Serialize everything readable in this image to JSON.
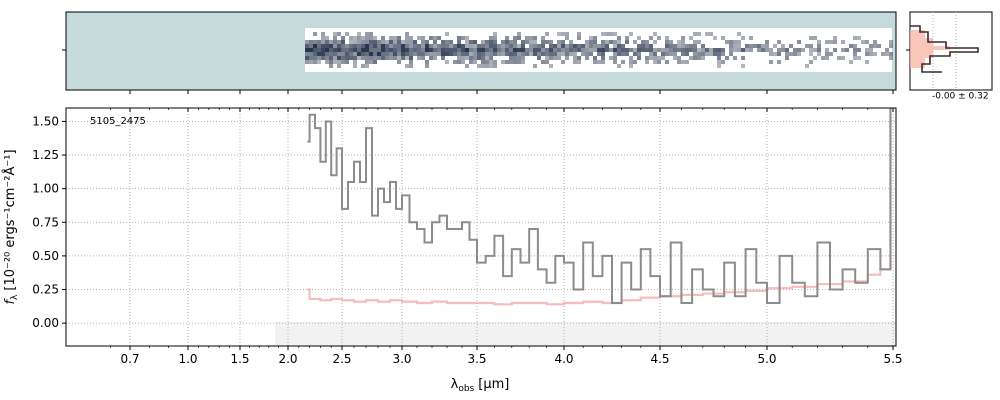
{
  "chart_data": {
    "type": "line",
    "object_label": "5105_2475",
    "xlabel_main": "λ",
    "xlabel_sub": "obs",
    "xlabel_unit": "[μm]",
    "ylabel_base": "f",
    "ylabel_sub": "λ",
    "ylabel_unit": "[10⁻²⁰ ergs⁻¹cm⁻²Å⁻¹]",
    "x_ticks": [
      "0.7",
      "1.0",
      "1.5",
      "2.0",
      "2.5",
      "3.0",
      "3.5",
      "4.0",
      "4.5",
      "5.0",
      "5.5"
    ],
    "y_ticks": [
      "0.00",
      "0.25",
      "0.50",
      "0.75",
      "1.00",
      "1.25",
      "1.50"
    ],
    "ylim": [
      -0.17,
      1.6
    ],
    "grid": true,
    "x_scale": "nonlinear (compressed below 2.0 μm)",
    "series": [
      {
        "color": "#8c8c8c",
        "x": [
          2.18,
          2.2,
          2.25,
          2.3,
          2.35,
          2.4,
          2.45,
          2.5,
          2.55,
          2.6,
          2.65,
          2.7,
          2.75,
          2.8,
          2.85,
          2.9,
          2.95,
          3.0,
          3.05,
          3.1,
          3.15,
          3.2,
          3.25,
          3.3,
          3.35,
          3.4,
          3.45,
          3.5,
          3.55,
          3.6,
          3.65,
          3.7,
          3.75,
          3.8,
          3.85,
          3.9,
          3.95,
          4.0,
          4.05,
          4.1,
          4.15,
          4.2,
          4.25,
          4.3,
          4.35,
          4.4,
          4.45,
          4.5,
          4.55,
          4.6,
          4.65,
          4.7,
          4.75,
          4.8,
          4.85,
          4.9,
          4.95,
          5.0,
          5.05,
          5.1,
          5.15,
          5.2,
          5.25,
          5.3,
          5.35,
          5.4,
          5.45,
          5.49
        ],
        "values": [
          1.35,
          1.55,
          1.45,
          1.2,
          1.5,
          1.1,
          1.3,
          0.85,
          1.05,
          1.2,
          1.05,
          1.45,
          0.8,
          1.0,
          0.9,
          1.05,
          0.85,
          0.95,
          0.75,
          0.7,
          0.6,
          0.75,
          0.8,
          0.7,
          0.7,
          0.75,
          0.62,
          0.45,
          0.5,
          0.65,
          0.35,
          0.55,
          0.45,
          0.7,
          0.4,
          0.3,
          0.5,
          0.45,
          0.25,
          0.6,
          0.35,
          0.5,
          0.15,
          0.45,
          0.25,
          0.55,
          0.35,
          0.2,
          0.6,
          0.15,
          0.4,
          0.25,
          0.2,
          0.45,
          0.2,
          0.55,
          0.3,
          0.15,
          0.5,
          0.3,
          0.2,
          0.6,
          0.25,
          0.4,
          0.3,
          0.55,
          0.4,
          1.6
        ]
      },
      {
        "color": "#f4a6a6",
        "x": [
          2.18,
          2.2,
          2.3,
          2.4,
          2.5,
          2.6,
          2.7,
          2.8,
          2.9,
          3.0,
          3.1,
          3.2,
          3.3,
          3.4,
          3.5,
          3.6,
          3.7,
          3.8,
          3.9,
          4.0,
          4.1,
          4.2,
          4.3,
          4.4,
          4.5,
          4.6,
          4.7,
          4.8,
          4.9,
          5.0,
          5.1,
          5.2,
          5.3,
          5.4,
          5.45,
          5.49
        ],
        "values": [
          0.25,
          0.18,
          0.17,
          0.18,
          0.17,
          0.16,
          0.17,
          0.16,
          0.17,
          0.16,
          0.15,
          0.16,
          0.15,
          0.15,
          0.15,
          0.14,
          0.15,
          0.15,
          0.14,
          0.15,
          0.16,
          0.15,
          0.17,
          0.19,
          0.2,
          0.21,
          0.22,
          0.23,
          0.24,
          0.26,
          0.27,
          0.29,
          0.31,
          0.36,
          0.4,
          1.55
        ]
      }
    ],
    "histogram_label": "-0.00 ± 0.32",
    "spectrum_2d_colors": [
      "#c5dada",
      "#ffffff",
      "#1e2a44"
    ]
  }
}
